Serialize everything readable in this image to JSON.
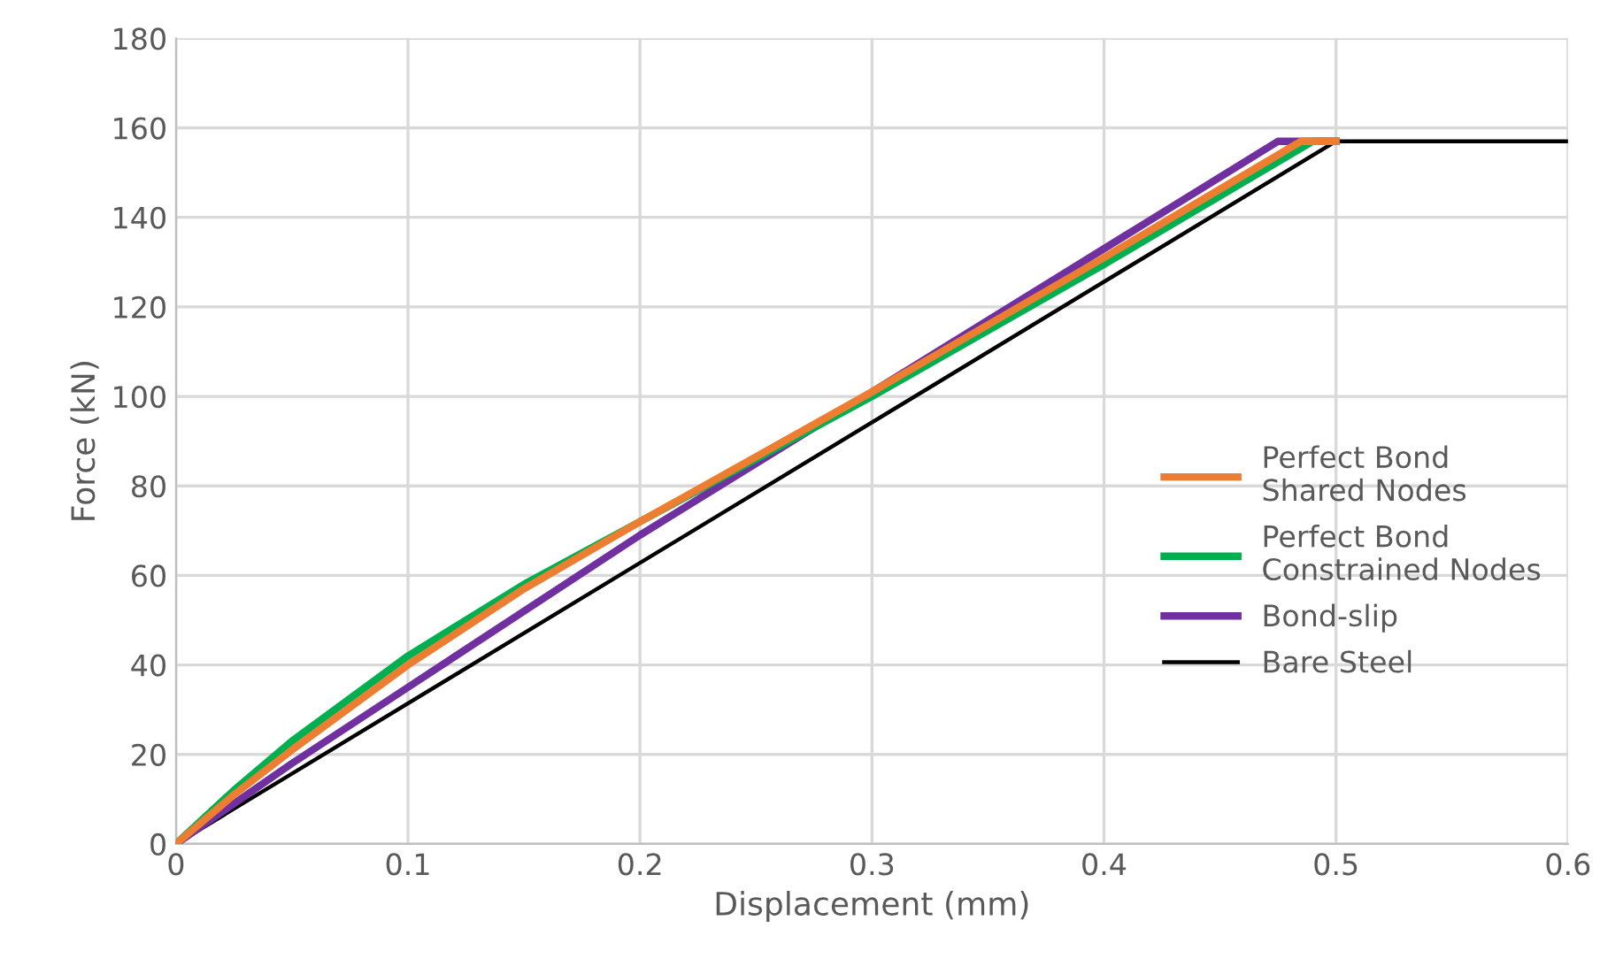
{
  "chart_data": {
    "type": "line",
    "xlabel": "Displacement (mm)",
    "ylabel": "Force (kN)",
    "xlim": [
      0,
      0.6
    ],
    "xticks": [
      0,
      0.1,
      0.2,
      0.3,
      0.4,
      0.5,
      0.6
    ],
    "ylim": [
      0,
      180
    ],
    "yticks": [
      0,
      20,
      40,
      60,
      80,
      100,
      120,
      140,
      160,
      180
    ],
    "grid": true,
    "legend": "right",
    "marker": "none",
    "line_style": "solid",
    "series": [
      {
        "name": "Perfect Bond\nShared Nodes",
        "color": "#ed7d31",
        "x": [
          0,
          0.025,
          0.05,
          0.1,
          0.15,
          0.2,
          0.3,
          0.4,
          0.485,
          0.5
        ],
        "values": [
          0,
          11,
          21,
          40,
          57,
          72,
          101,
          131,
          157,
          157
        ]
      },
      {
        "name": "Perfect Bond\nConstrained Nodes",
        "color": "#00b050",
        "x": [
          0,
          0.025,
          0.05,
          0.1,
          0.15,
          0.2,
          0.3,
          0.4,
          0.49,
          0.5
        ],
        "values": [
          0,
          12,
          23,
          42,
          58,
          72,
          100,
          129.5,
          157,
          157
        ]
      },
      {
        "name": "Bond-slip",
        "color": "#7030a0",
        "x": [
          0,
          0.05,
          0.1,
          0.2,
          0.3,
          0.4,
          0.475,
          0.5
        ],
        "values": [
          0,
          18,
          35,
          69,
          101,
          133,
          157,
          157
        ]
      },
      {
        "name": "Bare Steel",
        "color": "#000000",
        "x": [
          0,
          0.5,
          0.6
        ],
        "values": [
          0,
          157,
          157
        ]
      }
    ]
  }
}
